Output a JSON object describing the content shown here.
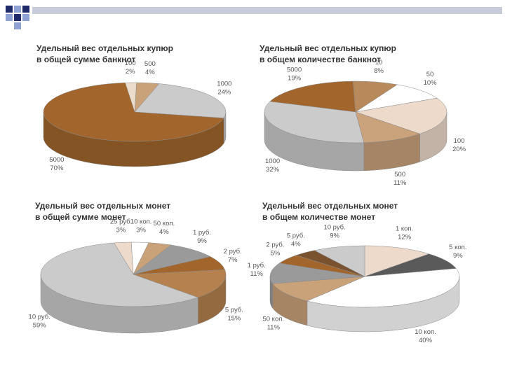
{
  "chart_data": [
    {
      "type": "pie",
      "title": [
        "Удельный вес отдельных купюр",
        "в общей сумме банкнот"
      ],
      "categories": [
        "100",
        "500",
        "1000",
        "5000"
      ],
      "values": [
        2,
        4,
        24,
        70
      ],
      "value_labels": [
        "2%",
        "4%",
        "24%",
        "70%"
      ],
      "colors": [
        "#ecdccb",
        "#c9a27a",
        "#cbcbcb",
        "#a2662c"
      ]
    },
    {
      "type": "pie",
      "title": [
        "Удельный вес отдельных купюр",
        "в общем количестве банкнот"
      ],
      "categories": [
        "5000",
        "10",
        "50",
        "100",
        "500",
        "1000"
      ],
      "values": [
        19,
        8,
        10,
        20,
        11,
        32
      ],
      "value_labels": [
        "19%",
        "8%",
        "10%",
        "20%",
        "11%",
        "32%"
      ],
      "colors": [
        "#a2662c",
        "#b8895a",
        "#ffffff",
        "#eddacb",
        "#caa27c",
        "#cbcbcb"
      ]
    },
    {
      "type": "pie",
      "title": [
        "Удельный вес отдельных монет",
        "в общей сумме монет"
      ],
      "categories": [
        "25 руб.",
        "10 коп.",
        "50 коп.",
        "1 руб.",
        "2 руб.",
        "5 руб.",
        "10 руб."
      ],
      "values": [
        3,
        3,
        4,
        9,
        7,
        15,
        59
      ],
      "value_labels": [
        "3%",
        "3%",
        "4%",
        "9%",
        "7%",
        "15%",
        "59%"
      ],
      "colors": [
        "#eddacb",
        "#ffffff",
        "#c9a27a",
        "#9a9a9a",
        "#a2662c",
        "#b5824f",
        "#cbcbcb"
      ]
    },
    {
      "type": "pie",
      "title": [
        "Удельный вес отдельных монет",
        "в общем количестве монет"
      ],
      "categories": [
        "1 коп.",
        "5 коп.",
        "10 коп.",
        "50 коп.",
        "1 руб.",
        "2 руб.",
        "5 руб.",
        "10 руб."
      ],
      "values": [
        12,
        9,
        40,
        11,
        11,
        5,
        4,
        9
      ],
      "value_labels": [
        "12%",
        "9%",
        "40%",
        "11%",
        "11%",
        "5%",
        "4%",
        "9%"
      ],
      "colors": [
        "#eddacb",
        "#5a5a5a",
        "#ffffff",
        "#c9a27a",
        "#9a9a9a",
        "#a2662c",
        "#7b5230",
        "#cbcbcb"
      ]
    }
  ]
}
